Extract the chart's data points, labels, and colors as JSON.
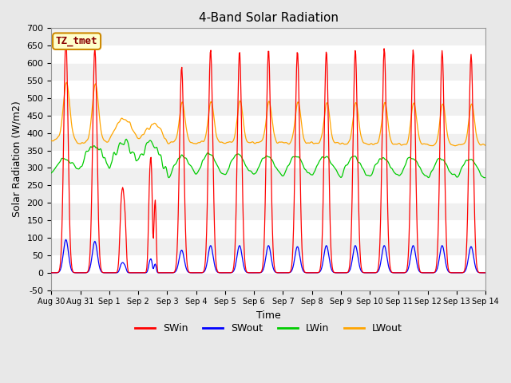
{
  "title": "4-Band Solar Radiation",
  "xlabel": "Time",
  "ylabel": "Solar Radiation (W/m2)",
  "ylim": [
    -50,
    700
  ],
  "colors": {
    "SWin": "#ff0000",
    "SWout": "#0000ff",
    "LWin": "#00cc00",
    "LWout": "#ffa500"
  },
  "label_box": "TZ_tmet",
  "label_box_bg": "#ffffcc",
  "label_box_border": "#cc8800",
  "label_box_text": "#880000",
  "fig_bg": "#e8e8e8",
  "plot_bg": "#ffffff",
  "grid_colors": [
    "#ffffff",
    "#e0e0e0"
  ],
  "xtick_labels": [
    "Aug 30",
    "Aug 31",
    "Sep 1",
    "Sep 2",
    "Sep 3",
    "Sep 4",
    "Sep 5",
    "Sep 6",
    "Sep 7",
    "Sep 8",
    "Sep 9",
    "Sep 10",
    "Sep 11",
    "Sep 12",
    "Sep 13",
    "Sep 14"
  ],
  "legend_labels": [
    "SWin",
    "SWout",
    "LWin",
    "LWout"
  ]
}
